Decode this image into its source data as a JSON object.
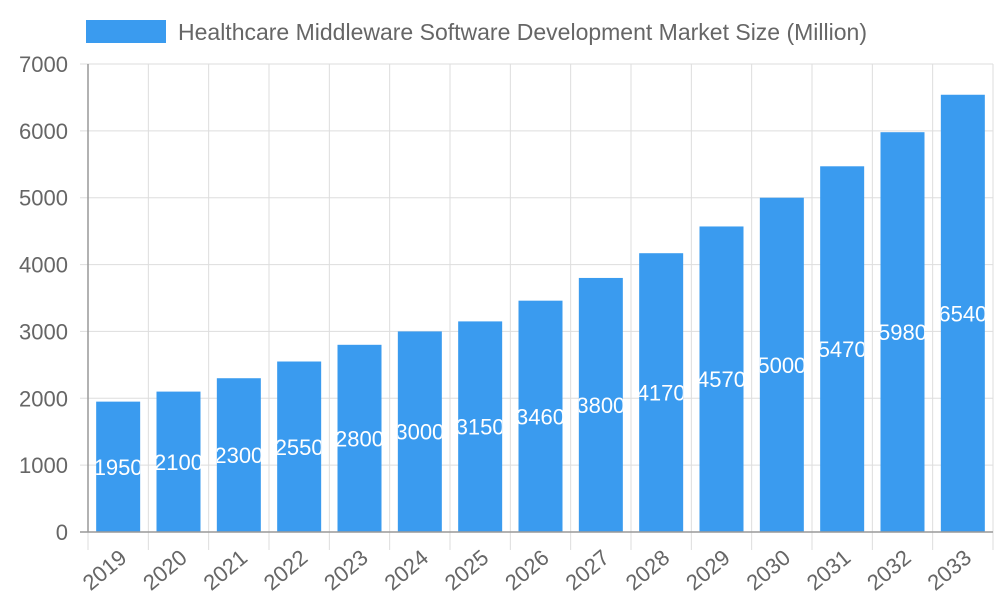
{
  "chart_data": {
    "type": "bar",
    "title": "",
    "xlabel": "",
    "ylabel": "",
    "legend": {
      "position": "top",
      "entries": [
        "Healthcare Middleware Software Development Market Size (Million)"
      ]
    },
    "categories": [
      "2019",
      "2020",
      "2021",
      "2022",
      "2023",
      "2024",
      "2025",
      "2026",
      "2027",
      "2028",
      "2029",
      "2030",
      "2031",
      "2032",
      "2033"
    ],
    "series": [
      {
        "name": "Healthcare Middleware Software Development Market Size (Million)",
        "values": [
          1950,
          2100,
          2300,
          2550,
          2800,
          3000,
          3150,
          3460,
          3800,
          4170,
          4570,
          5000,
          5470,
          5980,
          6540
        ],
        "color": "#3a9bef"
      }
    ],
    "ylim": [
      0,
      7000
    ],
    "yticks": [
      0,
      1000,
      2000,
      3000,
      4000,
      5000,
      6000,
      7000
    ],
    "grid": true,
    "data_labels": true
  }
}
